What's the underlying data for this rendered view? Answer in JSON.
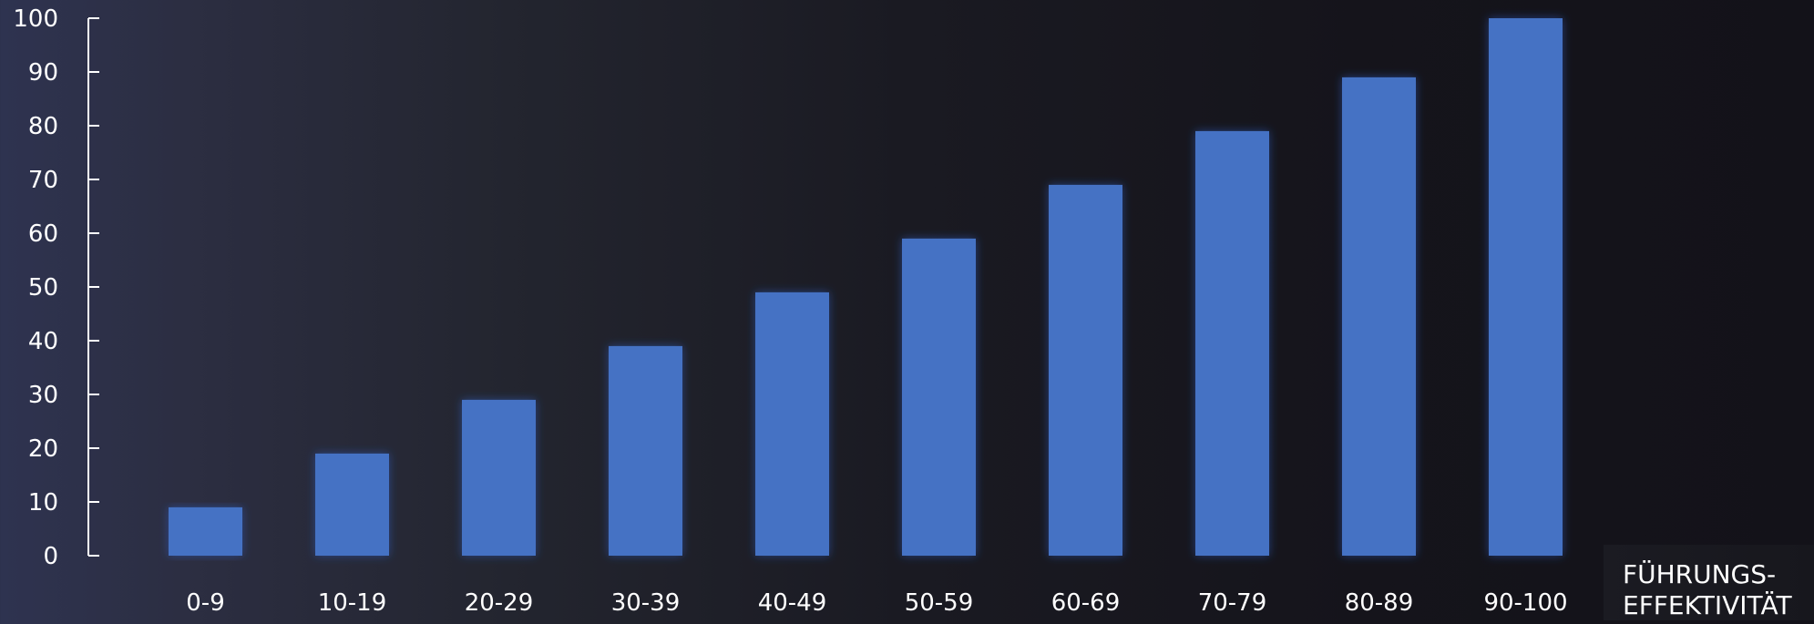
{
  "chart_data": {
    "type": "bar",
    "categories": [
      "0-9",
      "10-19",
      "20-29",
      "30-39",
      "40-49",
      "50-59",
      "60-69",
      "70-79",
      "80-89",
      "90-100"
    ],
    "values": [
      9,
      19,
      29,
      39,
      49,
      59,
      69,
      79,
      89,
      100
    ],
    "title": "",
    "xlabel_lines": [
      "FÜHRUNGS-",
      "EFFEKTIVITÄT"
    ],
    "ylabel": "",
    "ylim": [
      0,
      100
    ],
    "yticks": [
      0,
      10,
      20,
      30,
      40,
      50,
      60,
      70,
      80,
      90,
      100
    ],
    "grid": false,
    "legend": "none",
    "bar_color": "#4472c4",
    "axis_color": "#ffffff"
  }
}
